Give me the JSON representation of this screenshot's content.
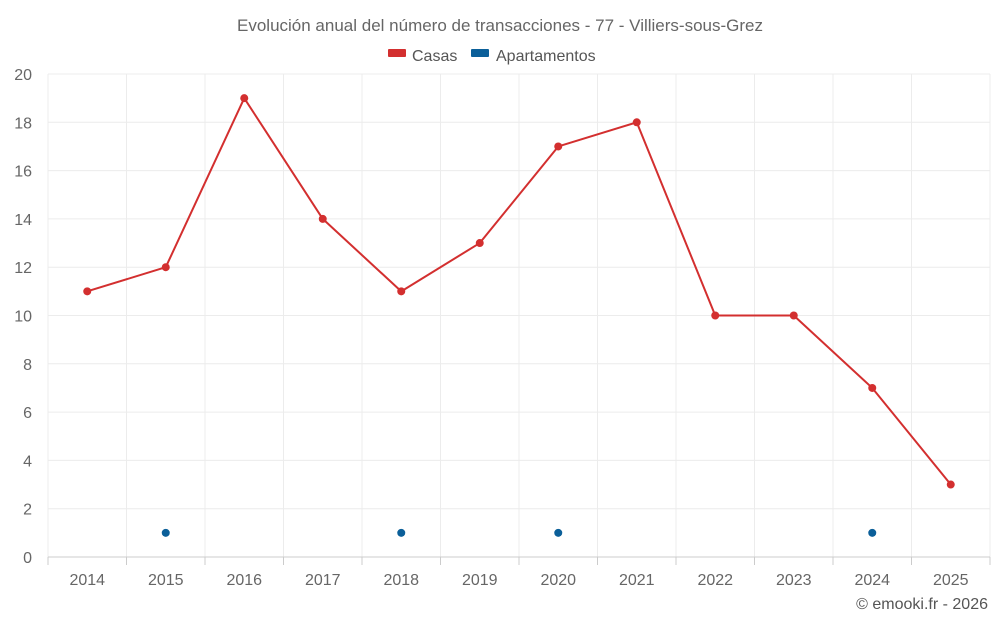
{
  "chart_data": {
    "type": "line",
    "title": "Evolución anual del número de transacciones - 77 - Villiers-sous-Grez",
    "categories": [
      "2014",
      "2015",
      "2016",
      "2017",
      "2018",
      "2019",
      "2020",
      "2021",
      "2022",
      "2023",
      "2024",
      "2025"
    ],
    "ylim": [
      0,
      20
    ],
    "yticks": [
      0,
      2,
      4,
      6,
      8,
      10,
      12,
      14,
      16,
      18,
      20
    ],
    "grid": true,
    "legend_position": "top",
    "series": [
      {
        "name": "Casas",
        "color": "#d32f2f",
        "values": [
          11,
          12,
          19,
          14,
          11,
          13,
          17,
          18,
          10,
          10,
          7,
          3
        ]
      },
      {
        "name": "Apartamentos",
        "color": "#0b5f99",
        "values": [
          null,
          1,
          null,
          null,
          1,
          null,
          1,
          null,
          null,
          null,
          1,
          null
        ]
      }
    ],
    "credit": "© emooki.fr - 2026"
  }
}
